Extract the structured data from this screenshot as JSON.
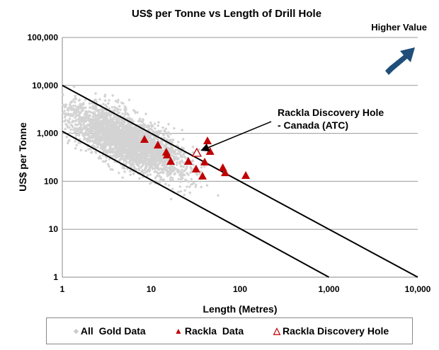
{
  "chart_data": {
    "type": "scatter",
    "title": "US$ per Tonne vs Length of Drill Hole",
    "xlabel": "Length (Metres)",
    "ylabel": "US$ per Tonne",
    "xscale": "log",
    "yscale": "log",
    "xlim": [
      1,
      10000
    ],
    "ylim": [
      1,
      100000
    ],
    "xticks": [
      "1",
      "10",
      "100",
      "1,000",
      "10,000"
    ],
    "yticks": [
      "1",
      "10",
      "100",
      "1,000",
      "10,000",
      "100,000"
    ],
    "grid": "horizontal",
    "series": [
      {
        "name": "All  Gold Data",
        "marker": "diamond",
        "color": "#d3d3d3",
        "count": 3000
      },
      {
        "name": "Rackla  Data",
        "marker": "triangle",
        "color": "#c00000",
        "points": [
          [
            8.4,
            752
          ],
          [
            11.9,
            573
          ],
          [
            14.8,
            408
          ],
          [
            15.1,
            356
          ],
          [
            16.6,
            262
          ],
          [
            26.2,
            262
          ],
          [
            32,
            181
          ],
          [
            37.8,
            129
          ],
          [
            40,
            254
          ],
          [
            43,
            703
          ],
          [
            46,
            422
          ],
          [
            64,
            193
          ],
          [
            68,
            152
          ],
          [
            116,
            133
          ]
        ]
      },
      {
        "name": "Rackla Discovery Hole",
        "marker": "triangle-open",
        "color": "#c00000",
        "points": [
          [
            32.6,
            394
          ]
        ]
      }
    ],
    "lines": [
      {
        "from": [
          1,
          10000
        ],
        "to": [
          10000,
          1
        ]
      },
      {
        "from": [
          1,
          1100
        ],
        "to": [
          1000,
          1
        ]
      }
    ],
    "annotations": {
      "discovery_line1": "Rackla Discovery Hole",
      "discovery_line2": "- Canada (ATC)",
      "higher_value": "Higher Value",
      "arrow_color": "#1f4e79"
    },
    "legend": [
      "All  Gold Data",
      "Rackla  Data",
      "Rackla Discovery Hole"
    ],
    "legend_position": "bottom"
  }
}
